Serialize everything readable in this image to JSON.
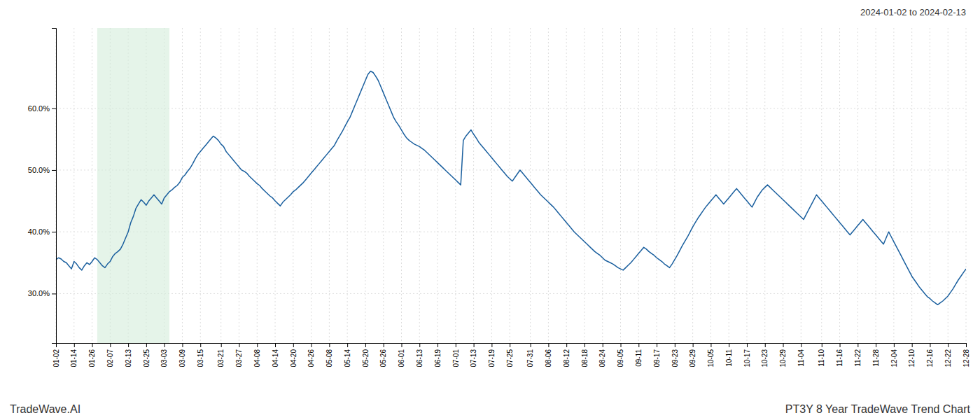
{
  "chart_data": {
    "type": "line",
    "title": "PT3Y 8 Year TradeWave Trend Chart",
    "subtitle": "2024-01-02 to 2024-02-13",
    "annotations": [
      "TradeWave.AI"
    ],
    "color": "#1a5f9e",
    "grid": true,
    "ylim": [
      0.22,
      0.73
    ],
    "yticks": [
      {
        "value": 0.3,
        "label": "30.0%"
      },
      {
        "value": 0.4,
        "label": "40.0%"
      },
      {
        "value": 0.5,
        "label": "50.0%"
      },
      {
        "value": 0.6,
        "label": "60.0%"
      }
    ],
    "highlight": {
      "start": 16,
      "end": 44,
      "color": "#d4edda"
    },
    "categories": [
      "01-02",
      null,
      null,
      null,
      null,
      null,
      null,
      "01-14",
      null,
      null,
      null,
      null,
      null,
      null,
      "01-26",
      null,
      null,
      null,
      null,
      null,
      null,
      "02-07",
      null,
      null,
      null,
      null,
      null,
      null,
      "02-13",
      null,
      null,
      null,
      null,
      null,
      null,
      "02-25",
      null,
      null,
      null,
      null,
      null,
      null,
      "03-03",
      null,
      null,
      null,
      null,
      null,
      null,
      "03-09",
      null,
      null,
      null,
      null,
      null,
      null,
      "03-15",
      null,
      null,
      null,
      null,
      null,
      null,
      null,
      "03-21",
      null,
      null,
      null,
      null,
      null,
      null,
      "03-27",
      null,
      null,
      null,
      null,
      null,
      null,
      "04-08",
      null,
      null,
      null,
      null,
      null,
      null,
      "04-14",
      null,
      null,
      null,
      null,
      null,
      null,
      "04-20",
      null,
      null,
      null,
      null,
      null,
      null,
      "04-26",
      null,
      null,
      null,
      null,
      null,
      null,
      "05-08",
      null,
      null,
      null,
      null,
      null,
      null,
      "05-14",
      null,
      null,
      null,
      null,
      null,
      null,
      "05-20",
      null,
      null,
      null,
      null,
      null,
      null,
      "05-26",
      null,
      null,
      null,
      null,
      null,
      null,
      "06-01",
      null,
      null,
      null,
      null,
      null,
      null,
      "06-13",
      null,
      null,
      null,
      null,
      null,
      null,
      "06-19",
      null,
      null,
      null,
      null,
      null,
      null,
      "07-01",
      null,
      null,
      null,
      null,
      null,
      null,
      "07-13",
      null,
      null,
      null,
      null,
      null,
      null,
      "07-19",
      null,
      null,
      null,
      null,
      null,
      null,
      "07-25",
      null,
      null,
      null,
      null,
      null,
      null,
      null,
      "07-31",
      null,
      null,
      null,
      null,
      null,
      null,
      "08-06",
      null,
      null,
      null,
      null,
      null,
      null,
      "08-12",
      null,
      null,
      null,
      null,
      null,
      null,
      "08-18",
      null,
      null,
      null,
      null,
      null,
      null,
      "08-24",
      null,
      null,
      null,
      null,
      null,
      null,
      "09-05",
      null,
      null,
      null,
      null,
      null,
      null,
      "09-11",
      null,
      null,
      null,
      null,
      null,
      null,
      "09-17",
      null,
      null,
      null,
      null,
      null,
      null,
      "09-23",
      null,
      null,
      null,
      null,
      null,
      null,
      "09-29",
      null,
      null,
      null,
      null,
      null,
      null,
      "10-05",
      null,
      null,
      null,
      null,
      null,
      null,
      "10-11",
      null,
      null,
      null,
      null,
      null,
      null,
      "10-17",
      null,
      null,
      null,
      null,
      null,
      null,
      "10-23",
      null,
      null,
      null,
      null,
      null,
      null,
      "10-29",
      null,
      null,
      null,
      null,
      null,
      null,
      "11-04",
      null,
      null,
      null,
      null,
      null,
      null,
      null,
      "11-10",
      null,
      null,
      null,
      null,
      null,
      null,
      "11-16",
      null,
      null,
      null,
      null,
      null,
      null,
      "11-22",
      null,
      null,
      null,
      null,
      null,
      null,
      "11-28",
      null,
      null,
      null,
      null,
      null,
      null,
      "12-04",
      null,
      null,
      null,
      null,
      null,
      null,
      "12-10",
      null,
      null,
      null,
      null,
      null,
      null,
      "12-16",
      null,
      null,
      null,
      null,
      null,
      null,
      "12-22",
      null,
      null,
      null,
      null,
      null,
      null,
      "12-28"
    ],
    "values": [
      0.355,
      0.358,
      0.356,
      0.352,
      0.35,
      0.345,
      0.34,
      0.352,
      0.348,
      0.342,
      0.338,
      0.345,
      0.35,
      0.347,
      0.352,
      0.358,
      0.355,
      0.35,
      0.345,
      0.342,
      0.348,
      0.352,
      0.36,
      0.365,
      0.368,
      0.372,
      0.38,
      0.39,
      0.4,
      0.415,
      0.425,
      0.438,
      0.445,
      0.452,
      0.448,
      0.443,
      0.45,
      0.455,
      0.46,
      0.455,
      0.45,
      0.445,
      0.455,
      0.46,
      0.465,
      0.468,
      0.472,
      0.475,
      0.48,
      0.488,
      0.492,
      0.498,
      0.503,
      0.51,
      0.518,
      0.525,
      0.53,
      0.535,
      0.54,
      0.545,
      0.55,
      0.555,
      0.552,
      0.548,
      0.542,
      0.538,
      0.53,
      0.525,
      0.52,
      0.515,
      0.51,
      0.505,
      0.5,
      0.498,
      0.495,
      0.49,
      0.486,
      0.482,
      0.478,
      0.475,
      0.47,
      0.466,
      0.462,
      0.458,
      0.455,
      0.45,
      0.446,
      0.442,
      0.448,
      0.452,
      0.456,
      0.46,
      0.465,
      0.468,
      0.472,
      0.476,
      0.48,
      0.485,
      0.49,
      0.495,
      0.5,
      0.505,
      0.51,
      0.515,
      0.52,
      0.525,
      0.53,
      0.535,
      0.54,
      0.548,
      0.555,
      0.562,
      0.57,
      0.578,
      0.585,
      0.595,
      0.605,
      0.615,
      0.625,
      0.635,
      0.645,
      0.655,
      0.66,
      0.658,
      0.652,
      0.645,
      0.635,
      0.625,
      0.615,
      0.605,
      0.595,
      0.585,
      0.578,
      0.572,
      0.565,
      0.558,
      0.552,
      0.548,
      0.545,
      0.542,
      0.54,
      0.538,
      0.535,
      0.532,
      0.528,
      0.524,
      0.52,
      0.516,
      0.512,
      0.508,
      0.504,
      0.5,
      0.496,
      0.492,
      0.488,
      0.484,
      0.48,
      0.476,
      0.548,
      0.555,
      0.56,
      0.565,
      0.558,
      0.552,
      0.545,
      0.54,
      0.535,
      0.53,
      0.525,
      0.52,
      0.515,
      0.51,
      0.505,
      0.5,
      0.495,
      0.49,
      0.486,
      0.482,
      0.488,
      0.494,
      0.5,
      0.495,
      0.49,
      0.485,
      0.48,
      0.475,
      0.47,
      0.465,
      0.46,
      0.456,
      0.452,
      0.448,
      0.444,
      0.44,
      0.435,
      0.43,
      0.425,
      0.42,
      0.415,
      0.41,
      0.405,
      0.4,
      0.396,
      0.392,
      0.388,
      0.384,
      0.38,
      0.376,
      0.372,
      0.368,
      0.365,
      0.362,
      0.358,
      0.354,
      0.352,
      0.35,
      0.348,
      0.345,
      0.342,
      0.34,
      0.338,
      0.342,
      0.346,
      0.35,
      0.355,
      0.36,
      0.365,
      0.37,
      0.375,
      0.372,
      0.368,
      0.365,
      0.362,
      0.358,
      0.355,
      0.352,
      0.348,
      0.345,
      0.342,
      0.348,
      0.355,
      0.362,
      0.37,
      0.378,
      0.385,
      0.392,
      0.4,
      0.408,
      0.415,
      0.422,
      0.428,
      0.434,
      0.44,
      0.445,
      0.45,
      0.455,
      0.46,
      0.455,
      0.45,
      0.445,
      0.45,
      0.455,
      0.46,
      0.465,
      0.47,
      0.465,
      0.46,
      0.455,
      0.45,
      0.445,
      0.44,
      0.448,
      0.456,
      0.462,
      0.468,
      0.472,
      0.476,
      0.472,
      0.468,
      0.464,
      0.46,
      0.456,
      0.452,
      0.448,
      0.444,
      0.44,
      0.436,
      0.432,
      0.428,
      0.424,
      0.42,
      0.428,
      0.436,
      0.444,
      0.452,
      0.46,
      0.455,
      0.45,
      0.445,
      0.44,
      0.435,
      0.43,
      0.425,
      0.42,
      0.415,
      0.41,
      0.405,
      0.4,
      0.395,
      0.4,
      0.405,
      0.41,
      0.415,
      0.42,
      0.415,
      0.41,
      0.405,
      0.4,
      0.395,
      0.39,
      0.385,
      0.38,
      0.39,
      0.4,
      0.392,
      0.384,
      0.376,
      0.368,
      0.36,
      0.352,
      0.344,
      0.336,
      0.328,
      0.322,
      0.316,
      0.31,
      0.305,
      0.3,
      0.295,
      0.292,
      0.288,
      0.285,
      0.282,
      0.285,
      0.288,
      0.292,
      0.296,
      0.302,
      0.308,
      0.315,
      0.322,
      0.328,
      0.334,
      0.34
    ]
  }
}
